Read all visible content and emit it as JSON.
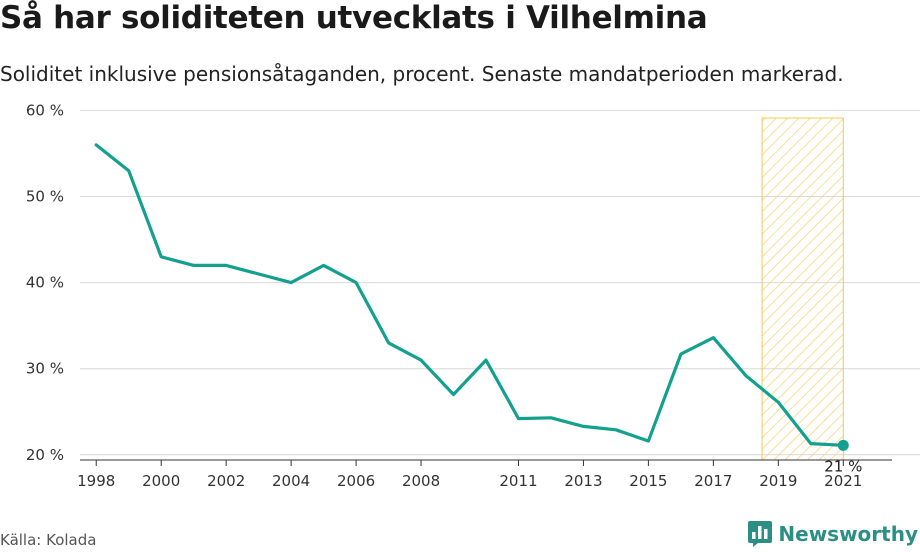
{
  "header": {
    "title": "Så har soliditeten utvecklats i Vilhelmina",
    "subtitle": "Soliditet inklusive pensionsåtaganden, procent. Senaste mandatperioden markerad."
  },
  "footer": {
    "source": "Källa: Kolada",
    "brand": "Newsworthy"
  },
  "colors": {
    "line": "#13a08f",
    "highlight_stroke": "#f5c84c",
    "highlight_hatch": "#f7d680",
    "grid": "#d9d9d9",
    "brand": "#2c8f86"
  },
  "chart_data": {
    "type": "line",
    "x": [
      1998,
      1999,
      2000,
      2001,
      2002,
      2003,
      2004,
      2005,
      2006,
      2007,
      2008,
      2009,
      2010,
      2011,
      2012,
      2013,
      2014,
      2015,
      2016,
      2017,
      2018,
      2019,
      2020,
      2021
    ],
    "series": [
      {
        "values": [
          56,
          53,
          43,
          42,
          42,
          41,
          40,
          42,
          40,
          33,
          31,
          27,
          31,
          24.2,
          24.3,
          23.3,
          22.9,
          21.6,
          31.7,
          33.6,
          29.2,
          26.1,
          21.3,
          21.1
        ]
      }
    ],
    "x_tick_labels": [
      "1998",
      "2000",
      "2002",
      "2004",
      "2006",
      "2008",
      "2011",
      "2013",
      "2015",
      "2017",
      "2019",
      "2021"
    ],
    "y_ticks": [
      20,
      30,
      40,
      50,
      60
    ],
    "y_tick_labels": [
      "20 %",
      "30 %",
      "40 %",
      "50 %",
      "60 %"
    ],
    "xlim": [
      1997.5,
      2022.5
    ],
    "ylim": [
      18,
      64
    ],
    "highlight_range": [
      2018.5,
      2021
    ],
    "end_label": "21 %",
    "grid": true
  }
}
